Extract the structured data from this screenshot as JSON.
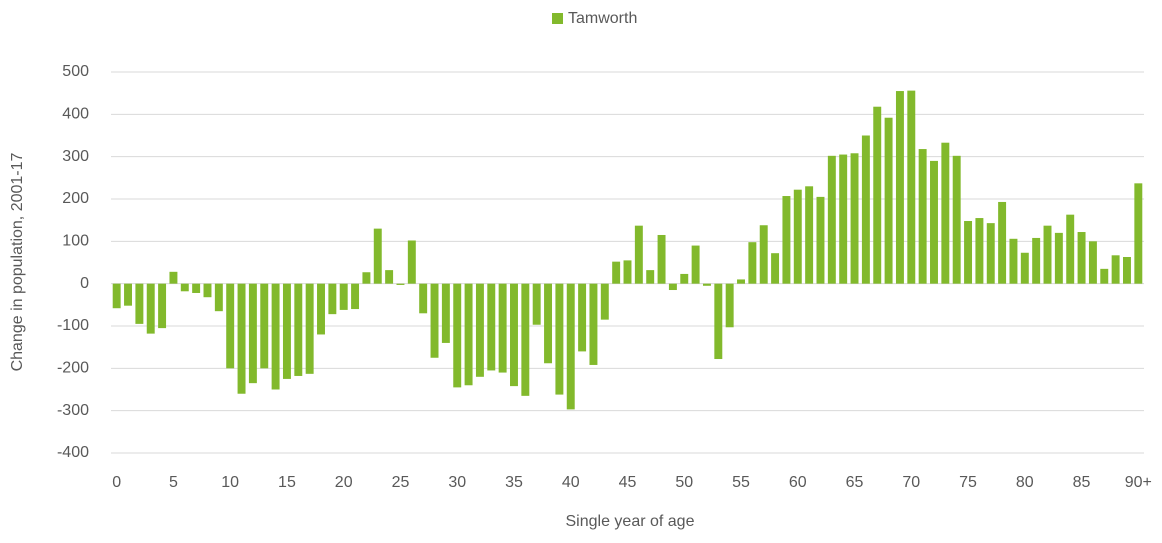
{
  "chart_data": {
    "type": "bar",
    "legend_position": "top",
    "series": [
      {
        "name": "Tamworth",
        "color": "#82b92c",
        "values": [
          -58,
          -52,
          -95,
          -118,
          -105,
          28,
          -18,
          -22,
          -32,
          -65,
          -200,
          -260,
          -235,
          -200,
          -250,
          -225,
          -218,
          -213,
          -120,
          -72,
          -62,
          -60,
          27,
          130,
          32,
          -3,
          102,
          -70,
          -175,
          -140,
          -245,
          -240,
          -220,
          -205,
          -210,
          -242,
          -265,
          -97,
          -188,
          -262,
          -297,
          -160,
          -192,
          -85,
          52,
          55,
          137,
          32,
          115,
          -15,
          23,
          90,
          -5,
          -178,
          -103,
          10,
          98,
          138,
          72,
          207,
          222,
          230,
          205,
          302,
          305,
          308,
          350,
          418,
          392,
          455,
          456,
          318,
          290,
          333,
          302,
          148,
          155,
          143,
          193,
          106,
          73,
          108,
          137,
          120,
          163,
          122,
          100,
          35,
          67,
          63,
          237
        ]
      }
    ],
    "categories": [
      "0",
      null,
      null,
      null,
      null,
      "5",
      null,
      null,
      null,
      null,
      "10",
      null,
      null,
      null,
      null,
      "15",
      null,
      null,
      null,
      null,
      "20",
      null,
      null,
      null,
      null,
      "25",
      null,
      null,
      null,
      null,
      "30",
      null,
      null,
      null,
      null,
      "35",
      null,
      null,
      null,
      null,
      "40",
      null,
      null,
      null,
      null,
      "45",
      null,
      null,
      null,
      null,
      "50",
      null,
      null,
      null,
      null,
      "55",
      null,
      null,
      null,
      null,
      "60",
      null,
      null,
      null,
      null,
      "65",
      null,
      null,
      null,
      null,
      "70",
      null,
      null,
      null,
      null,
      "75",
      null,
      null,
      null,
      null,
      "80",
      null,
      null,
      null,
      null,
      "85",
      null,
      null,
      null,
      null,
      "90+"
    ],
    "x_label": "Single year of age",
    "y_label": "Change in population, 2001-17",
    "ylim": [
      -400,
      500
    ],
    "yticks": [
      -400,
      -300,
      -200,
      -100,
      0,
      100,
      200,
      300,
      400,
      500
    ],
    "grid": true
  }
}
